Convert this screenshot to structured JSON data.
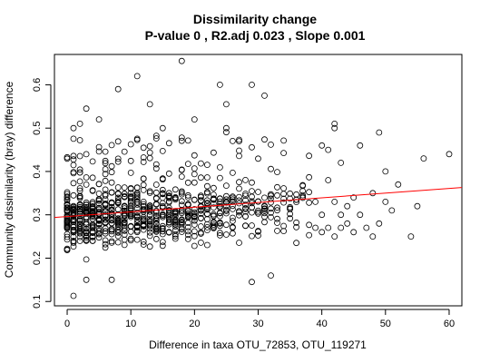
{
  "chart_data": {
    "type": "scatter",
    "title": "Dissimilarity change",
    "subtitle": "P-value 0 , R2.adj 0.023 , Slope 0.001",
    "xlabel": "Difference in taxa OTU_72853, OTU_119271",
    "ylabel": "Community dissimilarity (bray) difference",
    "xlim": [
      -2,
      62
    ],
    "ylim": [
      0.09,
      0.67
    ],
    "x_ticks": [
      0,
      10,
      20,
      30,
      40,
      50,
      60
    ],
    "y_ticks": [
      0.1,
      0.2,
      0.3,
      0.4,
      0.5,
      0.6
    ],
    "grid": false,
    "legend": "none",
    "marker": "open-circle",
    "regression_line": {
      "color": "#ff0000",
      "intercept": 0.296,
      "slope": 0.00108,
      "x_range": [
        -2,
        62
      ]
    },
    "point_color": "#000000",
    "x_dense": [
      0,
      1,
      2,
      3,
      4,
      5,
      6,
      7,
      8,
      9,
      10,
      11,
      12,
      13,
      14,
      15,
      16,
      17,
      18,
      19,
      20,
      21,
      22,
      23,
      24,
      25,
      26,
      27,
      28,
      29,
      30,
      31,
      32,
      33,
      34,
      35,
      36,
      37,
      38
    ],
    "points_per_x": [
      40,
      38,
      36,
      35,
      34,
      33,
      32,
      31,
      30,
      29,
      29,
      28,
      27,
      26,
      26,
      25,
      24,
      23,
      22,
      21,
      20,
      19,
      18,
      17,
      16,
      15,
      14,
      13,
      12,
      11,
      10,
      10,
      9,
      8,
      8,
      7,
      7,
      6,
      6
    ],
    "sparse_points": [
      {
        "x": 39,
        "y": 0.33
      },
      {
        "x": 39,
        "y": 0.27
      },
      {
        "x": 40,
        "y": 0.46
      },
      {
        "x": 40,
        "y": 0.3
      },
      {
        "x": 40,
        "y": 0.26
      },
      {
        "x": 41,
        "y": 0.45
      },
      {
        "x": 41,
        "y": 0.38
      },
      {
        "x": 41,
        "y": 0.27
      },
      {
        "x": 42,
        "y": 0.51
      },
      {
        "x": 42,
        "y": 0.5
      },
      {
        "x": 42,
        "y": 0.33
      },
      {
        "x": 42,
        "y": 0.25
      },
      {
        "x": 43,
        "y": 0.42
      },
      {
        "x": 43,
        "y": 0.3
      },
      {
        "x": 43,
        "y": 0.27
      },
      {
        "x": 44,
        "y": 0.32
      },
      {
        "x": 44,
        "y": 0.28
      },
      {
        "x": 45,
        "y": 0.34
      },
      {
        "x": 45,
        "y": 0.26
      },
      {
        "x": 46,
        "y": 0.46
      },
      {
        "x": 46,
        "y": 0.3
      },
      {
        "x": 47,
        "y": 0.27
      },
      {
        "x": 48,
        "y": 0.35
      },
      {
        "x": 48,
        "y": 0.25
      },
      {
        "x": 49,
        "y": 0.28
      },
      {
        "x": 49,
        "y": 0.49
      },
      {
        "x": 50,
        "y": 0.4
      },
      {
        "x": 50,
        "y": 0.33
      },
      {
        "x": 51,
        "y": 0.31
      },
      {
        "x": 52,
        "y": 0.37
      },
      {
        "x": 54,
        "y": 0.25
      },
      {
        "x": 55,
        "y": 0.32
      },
      {
        "x": 56,
        "y": 0.43
      },
      {
        "x": 60,
        "y": 0.44
      }
    ],
    "outlier_points": [
      {
        "x": 18,
        "y": 0.655
      },
      {
        "x": 11,
        "y": 0.62
      },
      {
        "x": 29,
        "y": 0.6
      },
      {
        "x": 24,
        "y": 0.6
      },
      {
        "x": 8,
        "y": 0.59
      },
      {
        "x": 31,
        "y": 0.575
      },
      {
        "x": 13,
        "y": 0.555
      },
      {
        "x": 25,
        "y": 0.555
      },
      {
        "x": 3,
        "y": 0.545
      },
      {
        "x": 2,
        "y": 0.51
      },
      {
        "x": 5,
        "y": 0.52
      },
      {
        "x": 20,
        "y": 0.52
      },
      {
        "x": 1,
        "y": 0.113
      },
      {
        "x": 29,
        "y": 0.145
      },
      {
        "x": 32,
        "y": 0.16
      },
      {
        "x": 3,
        "y": 0.15
      },
      {
        "x": 7,
        "y": 0.15
      }
    ]
  }
}
